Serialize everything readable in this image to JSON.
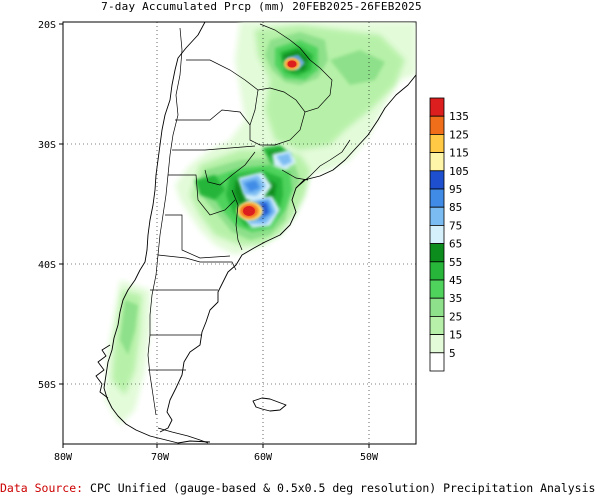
{
  "title": "7-day Accumulated Prcp (mm) 20FEB2025-26FEB2025",
  "lat_labels": [
    "20S",
    "30S",
    "40S",
    "50S"
  ],
  "lon_labels": [
    "80W",
    "70W",
    "60W",
    "50W"
  ],
  "legend": [
    {
      "label": "135",
      "color": "#dd1e1e"
    },
    {
      "label": "125",
      "color": "#f06d1a"
    },
    {
      "label": "115",
      "color": "#ffc845"
    },
    {
      "label": "105",
      "color": "#fff5a9"
    },
    {
      "label": "95",
      "color": "#1d4fcf"
    },
    {
      "label": "85",
      "color": "#3f8be6"
    },
    {
      "label": "75",
      "color": "#7bbcf2"
    },
    {
      "label": "65",
      "color": "#d5f0fb"
    },
    {
      "label": "55",
      "color": "#0c8c1c"
    },
    {
      "label": "45",
      "color": "#27b53a"
    },
    {
      "label": "35",
      "color": "#4fd35d"
    },
    {
      "label": "25",
      "color": "#8ee08a"
    },
    {
      "label": "15",
      "color": "#b7f1a9"
    },
    {
      "label": "5",
      "color": "#e3fbd9"
    },
    {
      "label": "",
      "color": "#ffffff"
    }
  ],
  "footer": {
    "source_label": "Data Source:",
    "source_text": "CPC Unified (gauge-based & 0.5x0.5 deg resolution) Precipitation Analysis"
  }
}
